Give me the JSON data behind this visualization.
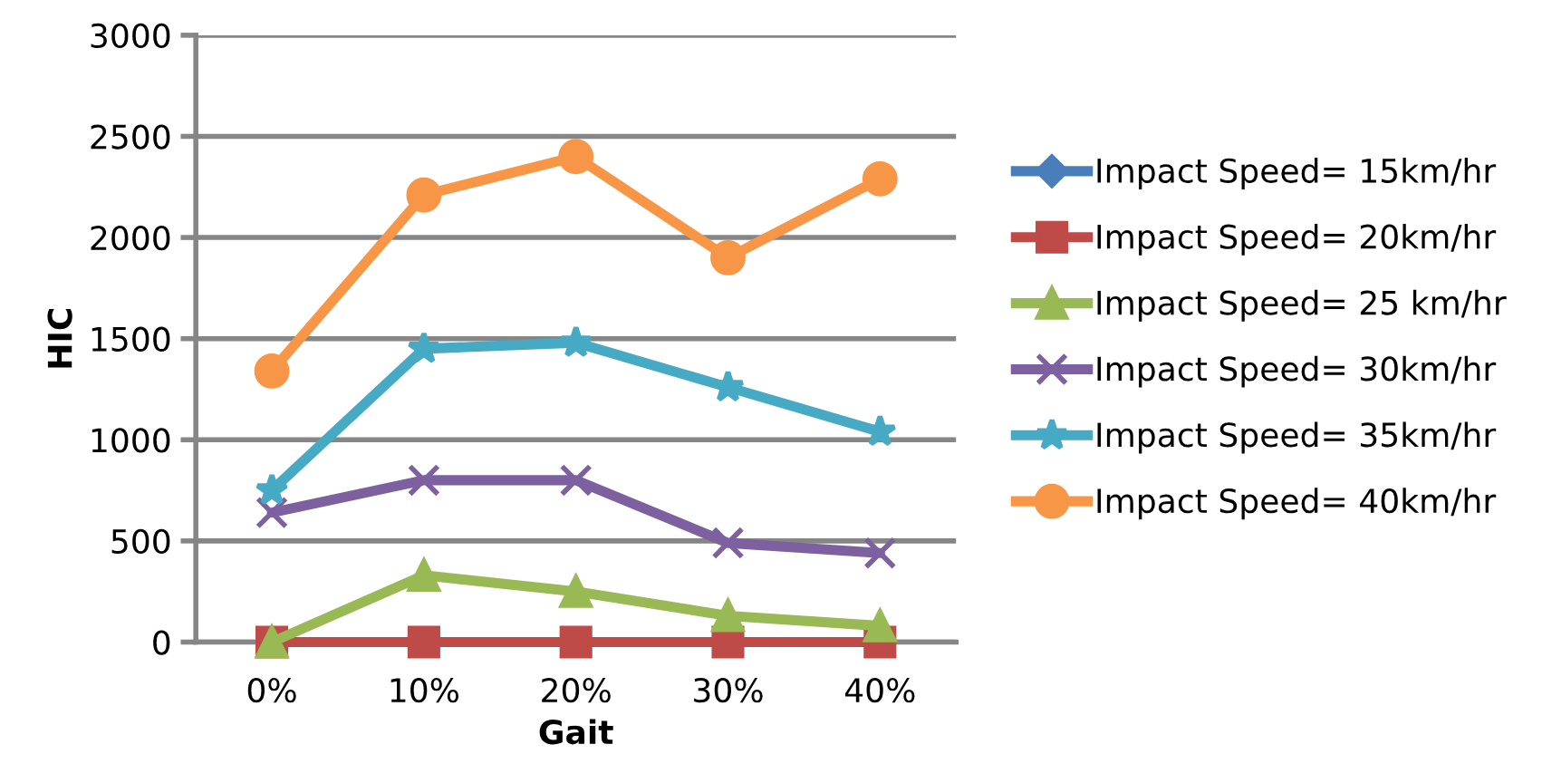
{
  "chart_data": {
    "type": "line",
    "xlabel": "Gait",
    "ylabel": "HIC",
    "categories": [
      "0%",
      "10%",
      "20%",
      "30%",
      "40%"
    ],
    "ylim": [
      0,
      3000
    ],
    "yticks": [
      0,
      500,
      1000,
      1500,
      2000,
      2500,
      3000
    ],
    "grid": "y",
    "legend": "right",
    "series": [
      {
        "name": "Impact Speed= 15km/hr",
        "color": "#4a7ebb",
        "marker": "diamond",
        "values": [
          null,
          null,
          null,
          null,
          null
        ]
      },
      {
        "name": "Impact Speed= 20km/hr",
        "color": "#be4b48",
        "marker": "square",
        "values": [
          0,
          0,
          0,
          0,
          0
        ]
      },
      {
        "name": "Impact Speed= 25 km/hr",
        "color": "#98b954",
        "marker": "triangle",
        "values": [
          0,
          330,
          250,
          130,
          80
        ]
      },
      {
        "name": "Impact Speed= 30km/hr",
        "color": "#7d60a0",
        "marker": "cross",
        "values": [
          640,
          800,
          800,
          490,
          440
        ]
      },
      {
        "name": "Impact Speed= 35km/hr",
        "color": "#46aac5",
        "marker": "star",
        "values": [
          750,
          1450,
          1480,
          1260,
          1040
        ]
      },
      {
        "name": "Impact Speed= 40km/hr",
        "color": "#f79646",
        "marker": "circle",
        "values": [
          1340,
          2210,
          2400,
          1900,
          2290
        ]
      }
    ]
  }
}
